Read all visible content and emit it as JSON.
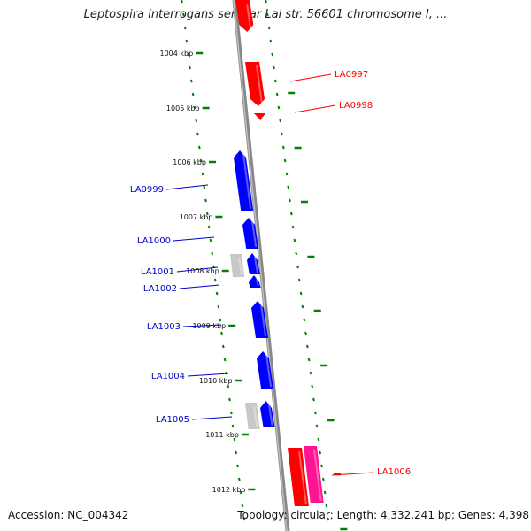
{
  "title": "Leptospira interrogans serovar Lai str. 56601 chromosome I, ...",
  "accession": "Accession: NC_004342",
  "stats": "Topology: circular; Length: 4,332,241 bp; Genes: 4,398",
  "colors": {
    "forward": "#ff0000",
    "reverse": "#0000ff",
    "other": "#c8c8c8",
    "pink": "#ff1493",
    "ticks": "#008000",
    "backbone": "#888888"
  },
  "kbp_ticks": [
    "1004 kbp",
    "1005 kbp",
    "1006 kbp",
    "1007 kbp",
    "1008 kbp",
    "1009 kbp",
    "1010 kbp",
    "1011 kbp",
    "1012 kbp"
  ],
  "gene_labels": [
    {
      "id": "LA0997",
      "text": "LA0997",
      "color": "#ff0000"
    },
    {
      "id": "LA0998",
      "text": "LA0998",
      "color": "#ff0000"
    },
    {
      "id": "LA0999",
      "text": "LA0999",
      "color": "#0000cc"
    },
    {
      "id": "LA1000",
      "text": "LA1000",
      "color": "#0000cc"
    },
    {
      "id": "LA1001",
      "text": "LA1001",
      "color": "#0000cc"
    },
    {
      "id": "LA1002",
      "text": "LA1002",
      "color": "#0000cc"
    },
    {
      "id": "LA1003",
      "text": "LA1003",
      "color": "#0000cc"
    },
    {
      "id": "LA1004",
      "text": "LA1004",
      "color": "#0000cc"
    },
    {
      "id": "LA1005",
      "text": "LA1005",
      "color": "#0000cc"
    },
    {
      "id": "LA1006",
      "text": "LA1006",
      "color": "#ff0000"
    }
  ]
}
